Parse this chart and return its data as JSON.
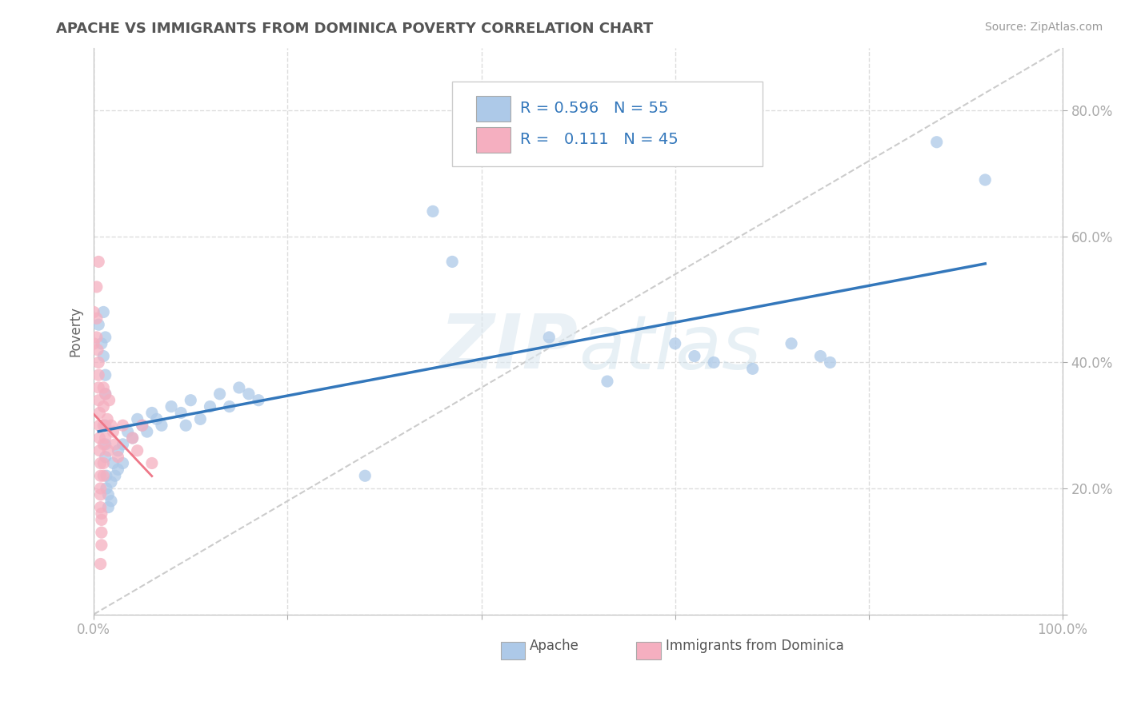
{
  "title": "APACHE VS IMMIGRANTS FROM DOMINICA POVERTY CORRELATION CHART",
  "source": "Source: ZipAtlas.com",
  "ylabel": "Poverty",
  "watermark": "ZIPatlas",
  "xlim": [
    0,
    1.0
  ],
  "ylim": [
    0,
    0.9
  ],
  "xticks": [
    0.0,
    0.2,
    0.4,
    0.6,
    0.8,
    1.0
  ],
  "xticklabels": [
    "0.0%",
    "",
    "",
    "",
    "",
    "100.0%"
  ],
  "ytick_positions": [
    0.0,
    0.2,
    0.4,
    0.6,
    0.8
  ],
  "ytick_labels": [
    "",
    "20.0%",
    "40.0%",
    "60.0%",
    "80.0%"
  ],
  "apache_R": 0.596,
  "apache_N": 55,
  "dominica_R": 0.111,
  "dominica_N": 45,
  "apache_color": "#adc9e8",
  "dominica_color": "#f5afc0",
  "apache_line_color": "#3377bb",
  "dominica_line_color": "#ee7788",
  "ref_line_color": "#cccccc",
  "legend_text_color": "#3377bb",
  "apache_scatter": [
    [
      0.005,
      0.46
    ],
    [
      0.008,
      0.43
    ],
    [
      0.01,
      0.48
    ],
    [
      0.01,
      0.41
    ],
    [
      0.012,
      0.44
    ],
    [
      0.012,
      0.38
    ],
    [
      0.012,
      0.35
    ],
    [
      0.012,
      0.3
    ],
    [
      0.012,
      0.27
    ],
    [
      0.012,
      0.25
    ],
    [
      0.013,
      0.22
    ],
    [
      0.013,
      0.2
    ],
    [
      0.015,
      0.19
    ],
    [
      0.015,
      0.17
    ],
    [
      0.018,
      0.21
    ],
    [
      0.018,
      0.18
    ],
    [
      0.02,
      0.24
    ],
    [
      0.022,
      0.22
    ],
    [
      0.025,
      0.26
    ],
    [
      0.025,
      0.23
    ],
    [
      0.03,
      0.27
    ],
    [
      0.03,
      0.24
    ],
    [
      0.035,
      0.29
    ],
    [
      0.04,
      0.28
    ],
    [
      0.045,
      0.31
    ],
    [
      0.05,
      0.3
    ],
    [
      0.055,
      0.29
    ],
    [
      0.06,
      0.32
    ],
    [
      0.065,
      0.31
    ],
    [
      0.07,
      0.3
    ],
    [
      0.08,
      0.33
    ],
    [
      0.09,
      0.32
    ],
    [
      0.095,
      0.3
    ],
    [
      0.1,
      0.34
    ],
    [
      0.11,
      0.31
    ],
    [
      0.12,
      0.33
    ],
    [
      0.13,
      0.35
    ],
    [
      0.14,
      0.33
    ],
    [
      0.15,
      0.36
    ],
    [
      0.16,
      0.35
    ],
    [
      0.17,
      0.34
    ],
    [
      0.28,
      0.22
    ],
    [
      0.35,
      0.64
    ],
    [
      0.37,
      0.56
    ],
    [
      0.47,
      0.44
    ],
    [
      0.53,
      0.37
    ],
    [
      0.6,
      0.43
    ],
    [
      0.62,
      0.41
    ],
    [
      0.64,
      0.4
    ],
    [
      0.68,
      0.39
    ],
    [
      0.72,
      0.43
    ],
    [
      0.75,
      0.41
    ],
    [
      0.76,
      0.4
    ],
    [
      0.87,
      0.75
    ],
    [
      0.92,
      0.69
    ]
  ],
  "dominica_scatter": [
    [
      0.0,
      0.48
    ],
    [
      0.0,
      0.43
    ],
    [
      0.003,
      0.47
    ],
    [
      0.003,
      0.44
    ],
    [
      0.004,
      0.42
    ],
    [
      0.005,
      0.4
    ],
    [
      0.005,
      0.38
    ],
    [
      0.005,
      0.36
    ],
    [
      0.005,
      0.34
    ],
    [
      0.006,
      0.32
    ],
    [
      0.006,
      0.3
    ],
    [
      0.006,
      0.28
    ],
    [
      0.006,
      0.26
    ],
    [
      0.007,
      0.24
    ],
    [
      0.007,
      0.22
    ],
    [
      0.007,
      0.2
    ],
    [
      0.007,
      0.19
    ],
    [
      0.007,
      0.17
    ],
    [
      0.008,
      0.16
    ],
    [
      0.008,
      0.15
    ],
    [
      0.008,
      0.13
    ],
    [
      0.008,
      0.11
    ],
    [
      0.01,
      0.36
    ],
    [
      0.01,
      0.33
    ],
    [
      0.01,
      0.3
    ],
    [
      0.01,
      0.27
    ],
    [
      0.01,
      0.24
    ],
    [
      0.01,
      0.22
    ],
    [
      0.012,
      0.35
    ],
    [
      0.012,
      0.28
    ],
    [
      0.014,
      0.31
    ],
    [
      0.015,
      0.26
    ],
    [
      0.016,
      0.34
    ],
    [
      0.018,
      0.3
    ],
    [
      0.02,
      0.29
    ],
    [
      0.022,
      0.27
    ],
    [
      0.025,
      0.25
    ],
    [
      0.03,
      0.3
    ],
    [
      0.04,
      0.28
    ],
    [
      0.045,
      0.26
    ],
    [
      0.05,
      0.3
    ],
    [
      0.06,
      0.24
    ],
    [
      0.005,
      0.56
    ],
    [
      0.003,
      0.52
    ],
    [
      0.007,
      0.08
    ]
  ],
  "background_color": "#ffffff",
  "grid_color": "#dddddd"
}
